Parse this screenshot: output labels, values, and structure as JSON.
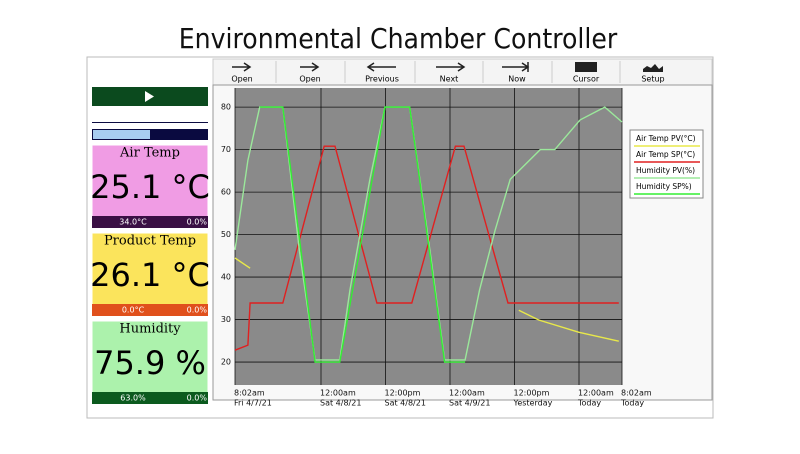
{
  "title": "Environmental Chamber Controller",
  "toolbar": [
    "Open",
    "Open",
    "Previous",
    "Next",
    "Now",
    "Cursor",
    "Setup"
  ],
  "panels": [
    {
      "label": "Air Temp",
      "value": "25.1 °C",
      "footer_left": "34.0°C",
      "footer_right": "0.0%"
    },
    {
      "label": "Product Temp",
      "value": "26.1 °C",
      "footer_left": "0.0°C",
      "footer_right": "0.0%"
    },
    {
      "label": "Humidity",
      "value": "75.9 %",
      "footer_left": "63.0%",
      "footer_right": "0.0%"
    }
  ],
  "chart_data": {
    "type": "line",
    "xlim": [
      0,
      72
    ],
    "ylim": [
      14.6,
      84.5
    ],
    "yticks": [
      20,
      30,
      40,
      50,
      60,
      70,
      80
    ],
    "xticks": [
      {
        "value": 0,
        "label": "8:02am",
        "sublabel": "Fri 4/7/21"
      },
      {
        "value": 16,
        "label": "12:00am",
        "sublabel": "Sat 4/8/21"
      },
      {
        "value": 28,
        "label": "12:00pm",
        "sublabel": "Sat 4/8/21"
      },
      {
        "value": 40,
        "label": "12:00am",
        "sublabel": "Sat 4/9/21"
      },
      {
        "value": 52,
        "label": "12:00pm",
        "sublabel": "Yesterday"
      },
      {
        "value": 64,
        "label": "12:00am",
        "sublabel": "Today"
      },
      {
        "value": 72,
        "label": "8:02am",
        "sublabel": "Today"
      }
    ],
    "grid": true,
    "series": [
      {
        "name": "Air Temp PV(°C)",
        "color": "#e8e84a",
        "x": [
          0,
          2.8,
          51,
          52.8,
          56.5,
          64,
          71.4
        ],
        "values": [
          44.5,
          42.1,
          null,
          32.2,
          29.9,
          27,
          24.9
        ]
      },
      {
        "name": "Air Temp SP(°C)",
        "color": "#e02020",
        "x": [
          0,
          2.4,
          2.8,
          8.9,
          16.6,
          18.6,
          26.4,
          32.9,
          41,
          42.6,
          50.8,
          71.4
        ],
        "values": [
          22.8,
          24,
          33.9,
          33.9,
          70.8,
          70.8,
          33.9,
          33.9,
          70.8,
          70.8,
          33.9,
          33.9
        ]
      },
      {
        "name": "Humidity PV(%)",
        "color": "#9be89b",
        "x": [
          0,
          2.4,
          4.6,
          8.9,
          12,
          14.9,
          19.5,
          21.4,
          25.1,
          27.9,
          32.5,
          36.3,
          39,
          42.8,
          45.5,
          48.4,
          51.2,
          56.8,
          59.5,
          64.2,
          68.8,
          72
        ],
        "values": [
          46.4,
          67.5,
          80,
          80,
          46,
          20.5,
          20.5,
          37,
          63,
          80,
          80,
          46,
          20.5,
          20.5,
          37,
          51,
          63,
          70,
          70,
          77,
          80,
          76.5
        ]
      },
      {
        "name": "Humidity SP%)",
        "color": "#33ee33",
        "x": [
          4.6,
          8.9,
          14.9,
          19.5,
          27.9,
          32.5,
          39,
          42.8
        ],
        "values": [
          80,
          80,
          20,
          20,
          80,
          80,
          20,
          20
        ]
      }
    ]
  }
}
